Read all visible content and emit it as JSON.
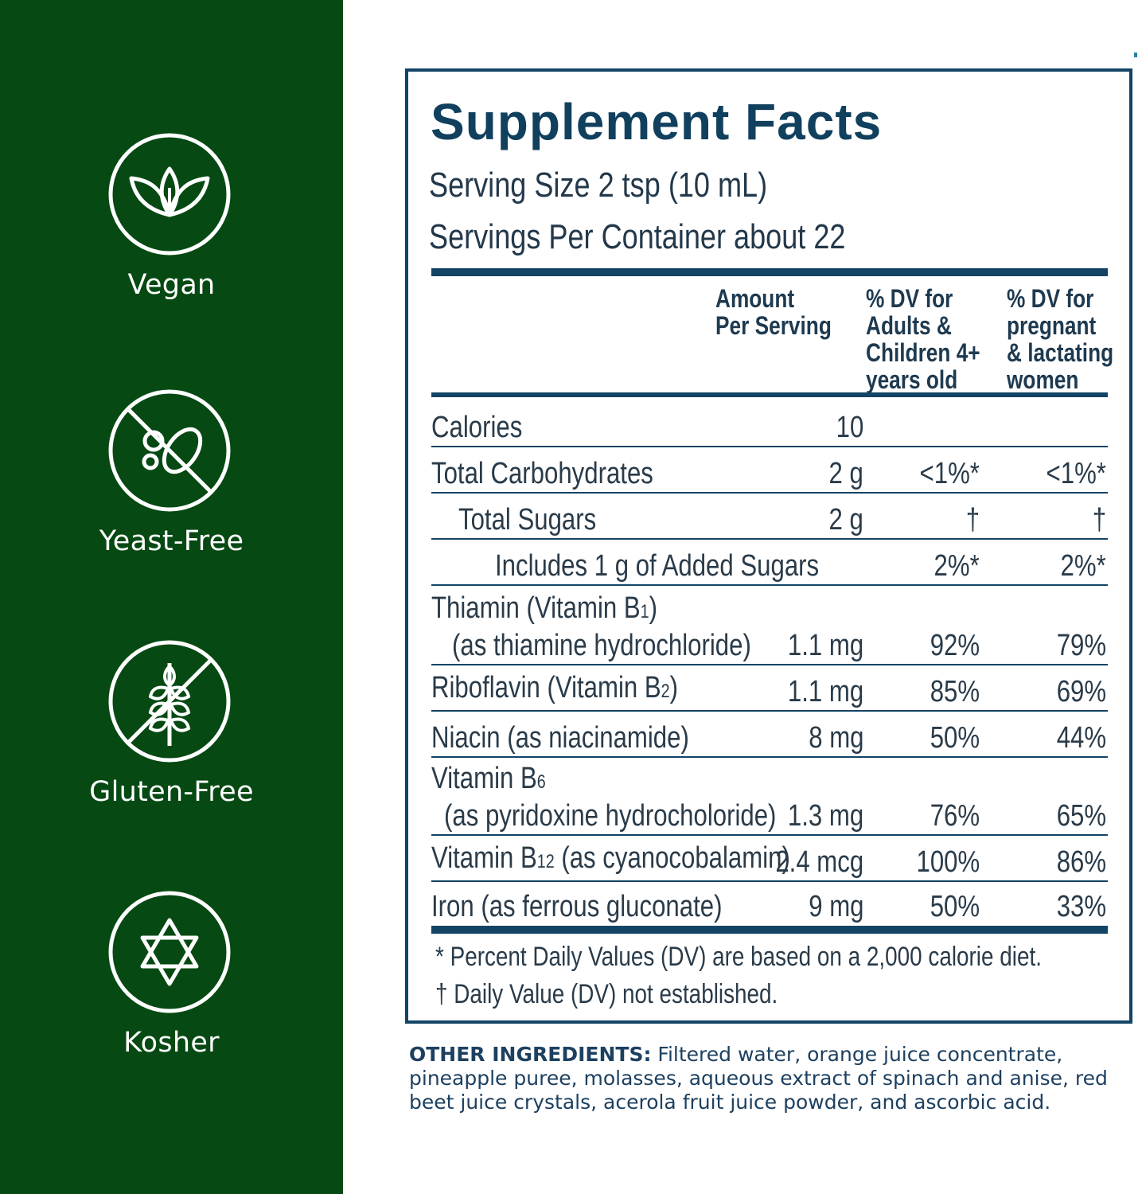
{
  "sidebar": {
    "badges": [
      {
        "label": "Vegan",
        "icon": "leaf-icon"
      },
      {
        "label": "Yeast-Free",
        "icon": "no-yeast-icon"
      },
      {
        "label": "Gluten-Free",
        "icon": "no-gluten-wheat-icon"
      },
      {
        "label": "Kosher",
        "icon": "star-of-david-icon"
      }
    ],
    "bg_color": "#064913"
  },
  "facts": {
    "title": "Supplement Facts",
    "serving_size": "Serving Size 2 tsp (10 mL)",
    "servings_per_container": "Servings Per Container about 22",
    "headers": {
      "amount": [
        "Amount",
        "Per Serving"
      ],
      "dv_adults": [
        "% DV for",
        "Adults &",
        "Children 4+",
        "years old"
      ],
      "dv_pregnant": [
        "% DV for",
        "pregnant",
        "& lactating",
        "women"
      ]
    },
    "rows": [
      {
        "name": "Calories",
        "amount": "10",
        "dv1": "",
        "dv2": ""
      },
      {
        "name": "Total Carbohydrates",
        "amount": "2 g",
        "dv1": "<1%*",
        "dv2": "<1%*"
      },
      {
        "name": "Total Sugars",
        "amount": "2 g",
        "dv1": "†",
        "dv2": "†"
      },
      {
        "name": "Includes 1 g of Added Sugars",
        "amount": "",
        "dv1": "2%*",
        "dv2": "2%*"
      },
      {
        "name_line1": "Thiamin (Vitamin B",
        "name_line1_sub": "1",
        "name_line1_end": ")",
        "name_line2": "(as thiamine hydrochloride)",
        "amount": "1.1 mg",
        "dv1": "92%",
        "dv2": "79%"
      },
      {
        "name": "Riboflavin (Vitamin B",
        "name_sub": "2",
        "name_end": ")",
        "amount": "1.1 mg",
        "dv1": "85%",
        "dv2": "69%"
      },
      {
        "name": "Niacin (as niacinamide)",
        "amount": "8 mg",
        "dv1": "50%",
        "dv2": "44%"
      },
      {
        "name_line1": "Vitamin B",
        "name_line1_sub": "6",
        "name_line2": "(as pyridoxine hydrocholoride)",
        "amount": "1.3 mg",
        "dv1": "76%",
        "dv2": "65%"
      },
      {
        "name": "Vitamin B",
        "name_sub": "12",
        "name_end": " (as cyanocobalamin)",
        "amount": "2.4 mcg",
        "dv1": "100%",
        "dv2": "86%"
      },
      {
        "name": "Iron (as ferrous gluconate)",
        "amount": "9 mg",
        "dv1": "50%",
        "dv2": "33%"
      }
    ],
    "footnote1": "* Percent Daily Values (DV) are based on a 2,000 calorie diet.",
    "footnote2": "† Daily Value (DV) not established."
  },
  "other_ingredients": {
    "label": "OTHER INGREDIENTS:",
    "text": " Filtered water, orange juice concentrate, pineapple puree, molasses, aqueous extract of spinach and anise, red beet juice crystals, acerola fruit juice powder, and ascorbic acid."
  },
  "colors": {
    "brand_green": "#064913",
    "navy": "#134466"
  }
}
